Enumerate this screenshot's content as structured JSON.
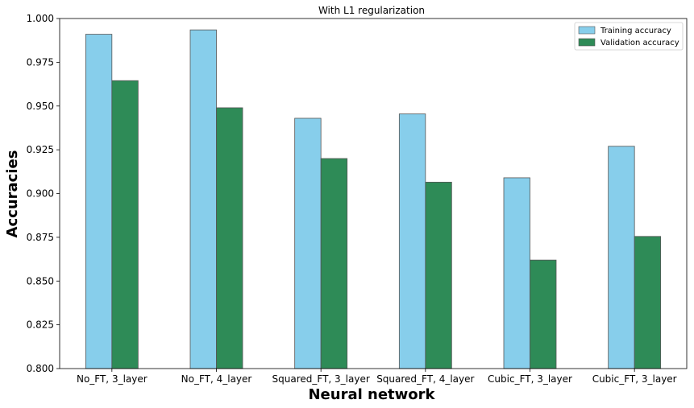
{
  "chart_data": {
    "type": "bar",
    "title": "With L1 regularization",
    "xlabel": "Neural network",
    "ylabel": "Accuracies",
    "categories": [
      "No_FT, 3_layer",
      "No_FT, 4_layer",
      "Squared_FT, 3_layer",
      "Squared_FT, 4_layer",
      "Cubic_FT, 3_layer",
      "Cubic_FT, 3_layer"
    ],
    "series": [
      {
        "name": "Training accuracy",
        "color": "#87ceeb",
        "values": [
          0.991,
          0.9935,
          0.943,
          0.9455,
          0.909,
          0.927
        ]
      },
      {
        "name": "Validation accuracy",
        "color": "#2e8b57",
        "values": [
          0.9645,
          0.949,
          0.92,
          0.9065,
          0.862,
          0.8755
        ]
      }
    ],
    "ylim": [
      0.8,
      1.0
    ],
    "yticks": [
      0.8,
      0.825,
      0.85,
      0.875,
      0.9,
      0.925,
      0.95,
      0.975,
      1.0
    ],
    "ytick_labels": [
      "0.800",
      "0.825",
      "0.850",
      "0.875",
      "0.900",
      "0.925",
      "0.950",
      "0.975",
      "1.000"
    ],
    "grid": false,
    "legend_position": "top-right",
    "bar_edge_color": "#555555"
  }
}
